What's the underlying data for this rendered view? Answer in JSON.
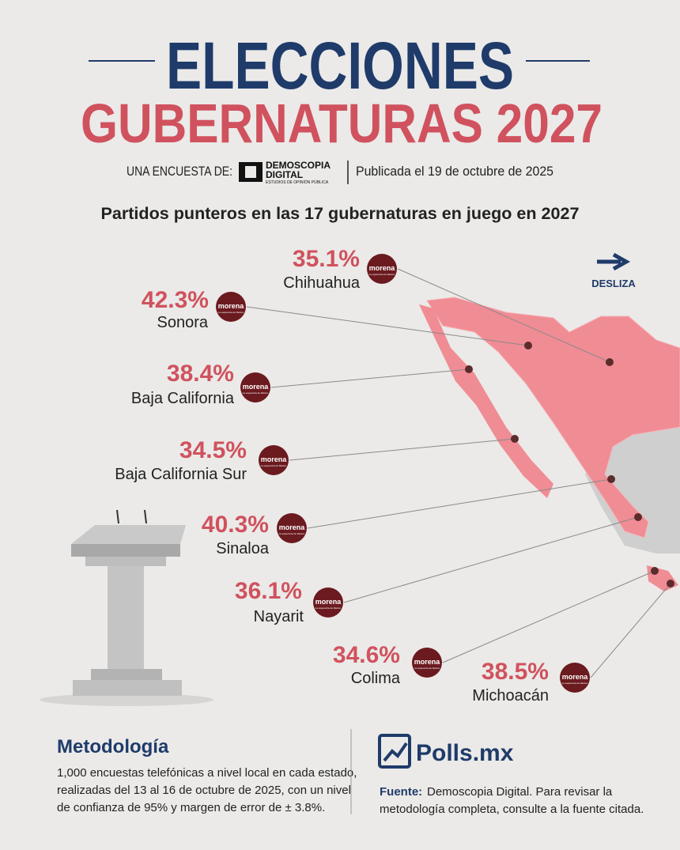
{
  "header": {
    "title": "ELECCIONES",
    "subtitle": "GUBERNATURAS 2027",
    "survey_by": "UNA ENCUESTA DE:",
    "logo": {
      "name": "DEMOSCOPIA",
      "name2": "DIGITAL",
      "tagline": "ESTUDIOS DE OPINIÓN PÚBLICA"
    },
    "published": "Publicada el 19 de octubre de 2025"
  },
  "heading": "Partidos punteros en las 17 gubernaturas en juego en 2027",
  "swipe": "DESLIZA",
  "party": {
    "name": "morena",
    "tagline": "La esperanza de México"
  },
  "states": [
    {
      "pct": "35.1%",
      "name": "Chihuahua"
    },
    {
      "pct": "42.3%",
      "name": "Sonora"
    },
    {
      "pct": "38.4%",
      "name": "Baja California"
    },
    {
      "pct": "34.5%",
      "name": "Baja California Sur"
    },
    {
      "pct": "40.3%",
      "name": "Sinaloa"
    },
    {
      "pct": "36.1%",
      "name": "Nayarit"
    },
    {
      "pct": "34.6%",
      "name": "Colima"
    },
    {
      "pct": "38.5%",
      "name": "Michoacán"
    }
  ],
  "methodology": {
    "title": "Metodología",
    "lines": [
      "1,000 encuestas telefónicas a nivel local en cada estado,",
      "realizadas del 13 al 16 de octubre de 2025, con un nivel",
      "de confianza de 95% y margen de error de ± 3.8%."
    ]
  },
  "source": {
    "brand": "Polls.mx",
    "label": "Fuente:",
    "lines": [
      "Demoscopia Digital. Para revisar la",
      "metodología completa, consulte a la fuente citada."
    ]
  }
}
